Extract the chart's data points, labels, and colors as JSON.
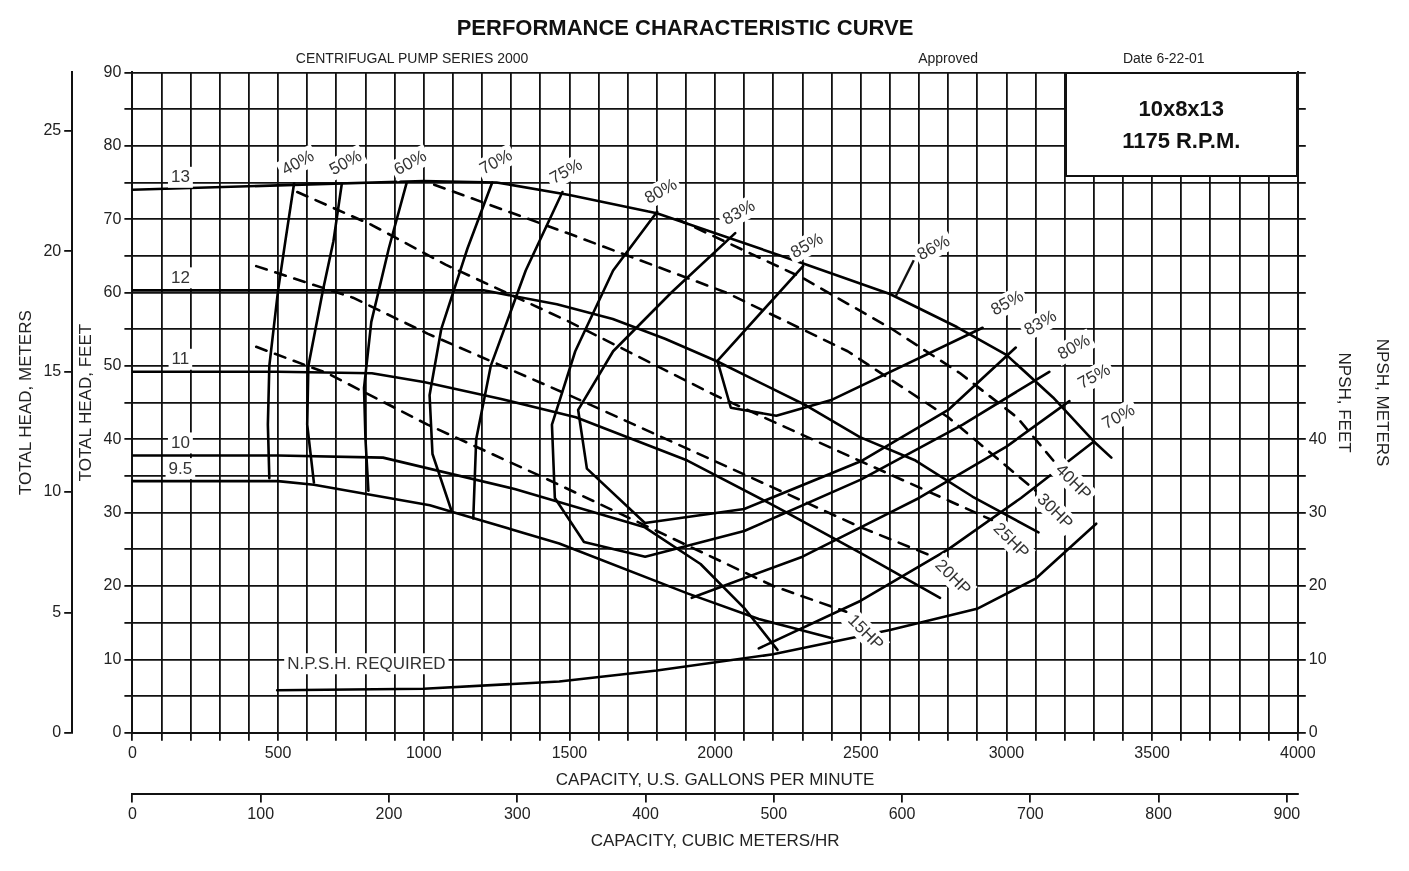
{
  "chart_data": {
    "type": "line",
    "title": "PERFORMANCE CHARACTERISTIC CURVE",
    "annotations": [
      "CENTRIFUGAL PUMP SERIES 2000",
      "Approved",
      "Date 6-22-01",
      "10x8x13",
      "1175 R.P.M.",
      "NPSH, METERS",
      {
        "text": "86%",
        "x": 2620,
        "y": 59.5
      }
    ],
    "xlabel": "CAPACITY, U.S. GALLONS PER MINUTE",
    "x2label": "CAPACITY, CUBIC METERS/HR",
    "ylabel": "TOTAL HEAD, FEET",
    "y2label": "TOTAL HEAD, METERS",
    "y3label": "NPSH, FEET",
    "xlim": [
      0,
      4000
    ],
    "xticks": [
      0,
      {
        "value": 100,
        "label": null
      },
      {
        "value": 200,
        "label": null
      },
      {
        "value": 300,
        "label": null
      },
      {
        "value": 400,
        "label": null
      },
      500,
      {
        "value": 600,
        "label": null
      },
      {
        "value": 700,
        "label": null
      },
      {
        "value": 800,
        "label": null
      },
      {
        "value": 900,
        "label": null
      },
      1000,
      {
        "value": 1100,
        "label": null
      },
      {
        "value": 1200,
        "label": null
      },
      {
        "value": 1300,
        "label": null
      },
      {
        "value": 1400,
        "label": null
      },
      1500,
      {
        "value": 1600,
        "label": null
      },
      {
        "value": 1700,
        "label": null
      },
      {
        "value": 1800,
        "label": null
      },
      {
        "value": 1900,
        "label": null
      },
      2000,
      {
        "value": 2100,
        "label": null
      },
      {
        "value": 2200,
        "label": null
      },
      {
        "value": 2300,
        "label": null
      },
      {
        "value": 2400,
        "label": null
      },
      2500,
      {
        "value": 2600,
        "label": null
      },
      {
        "value": 2700,
        "label": null
      },
      {
        "value": 2800,
        "label": null
      },
      {
        "value": 2900,
        "label": null
      },
      3000,
      {
        "value": 3100,
        "label": null
      },
      {
        "value": 3200,
        "label": null
      },
      {
        "value": 3300,
        "label": null
      },
      {
        "value": 3400,
        "label": null
      },
      3500,
      {
        "value": 3600,
        "label": null
      },
      {
        "value": 3700,
        "label": null
      },
      {
        "value": 3800,
        "label": null
      },
      {
        "value": 3900,
        "label": null
      },
      4000
    ],
    "x2lim": [
      0,
      908.5
    ],
    "x2ticks": [
      0,
      100,
      200,
      300,
      400,
      500,
      600,
      700,
      800,
      900
    ],
    "ylim": [
      0,
      90
    ],
    "yticks": [
      0,
      {
        "value": 5,
        "label": null
      },
      10,
      {
        "value": 15,
        "label": null
      },
      20,
      {
        "value": 25,
        "label": null
      },
      30,
      {
        "value": 35,
        "label": null
      },
      40,
      {
        "value": 45,
        "label": null
      },
      50,
      {
        "value": 55,
        "label": null
      },
      60,
      {
        "value": 65,
        "label": null
      },
      70,
      {
        "value": 75,
        "label": null
      },
      80,
      {
        "value": 85,
        "label": null
      },
      90
    ],
    "y2lim": [
      0,
      27.43
    ],
    "y2ticks": [
      0,
      5,
      10,
      15,
      20,
      25
    ],
    "y3lim": [
      0,
      90
    ],
    "y3ticks": [
      0,
      {
        "value": 5,
        "label": null
      },
      10,
      {
        "value": 15,
        "label": null
      },
      20,
      {
        "value": 25,
        "label": null
      },
      30,
      {
        "value": 35,
        "label": null
      },
      40,
      {
        "value": 45,
        "label": null
      },
      {
        "value": 50,
        "label": null
      },
      {
        "value": 55,
        "label": null
      },
      {
        "value": 60,
        "label": null
      },
      {
        "value": 65,
        "label": null
      },
      {
        "value": 70,
        "label": null
      },
      {
        "value": 75,
        "label": null
      },
      {
        "value": 80,
        "label": null
      },
      {
        "value": 85,
        "label": null
      },
      {
        "value": 90,
        "label": null
      }
    ],
    "grid": true,
    "series": [
      {
        "name": "13",
        "color": "#000000",
        "x": [
          0,
          500,
          1000,
          1250,
          1500,
          1800,
          2300,
          2600,
          2830,
          3000,
          3160,
          3300,
          3360
        ],
        "values": [
          74,
          74.6,
          75.2,
          75,
          73.3,
          70.8,
          64,
          59.8,
          55.3,
          51.5,
          45.7,
          39.7,
          37.5
        ]
      },
      {
        "name": "12",
        "color": "#000000",
        "x": [
          0,
          500,
          1000,
          1205,
          1457,
          1649,
          1828,
          2008,
          2313,
          2497,
          2688,
          2883,
          3110
        ],
        "values": [
          60.3,
          60.3,
          60.3,
          60.3,
          58.4,
          56.4,
          53.7,
          50.6,
          44.6,
          40.3,
          37.1,
          32.2,
          27.3
        ]
      },
      {
        "name": "11",
        "color": "#000000",
        "x": [
          0,
          500,
          822,
          1000,
          1266,
          1522,
          1905,
          2200,
          2500,
          2772
        ],
        "values": [
          49.2,
          49.2,
          49,
          47.8,
          45.5,
          43,
          37.1,
          31,
          24.5,
          18.4
        ]
      },
      {
        "name": "10",
        "color": "#000000",
        "x": [
          0,
          500,
          860,
          1315,
          1759,
          1950,
          2100,
          2214
        ],
        "values": [
          37.8,
          37.8,
          37.5,
          33.2,
          28,
          23,
          17,
          11.3
        ]
      },
      {
        "name": "9.5",
        "color": "#000000",
        "x": [
          0,
          500,
          623,
          1021,
          1465,
          1905,
          2150,
          2402
        ],
        "values": [
          34.3,
          34.3,
          33.8,
          31,
          25.8,
          19,
          15.5,
          12.9
        ]
      },
      {
        "name": "40%",
        "color": "#000000",
        "x": [
          555,
          525,
          500,
          470,
          465,
          470
        ],
        "values": [
          74.9,
          67,
          60.3,
          50,
          42,
          34.7
        ]
      },
      {
        "name": "50%",
        "color": "#000000",
        "x": [
          719,
          690,
          654,
          604,
          600,
          623
        ],
        "values": [
          74.9,
          67,
          60.3,
          50,
          42,
          34.1
        ]
      },
      {
        "name": "60%",
        "color": "#000000",
        "x": [
          941,
          880,
          820,
          795,
          800,
          810
        ],
        "values": [
          74.9,
          66,
          56,
          47,
          40,
          33
        ]
      },
      {
        "name": "70%",
        "color": "#000000",
        "x": [
          1235,
          1150,
          1060,
          1020,
          1030,
          1094,
          1600,
          2150,
          2500,
          2800,
          3050,
          3300
        ],
        "values": [
          75,
          66,
          55,
          46,
          38,
          30.4,
          null,
          11.5,
          18,
          25,
          32,
          39.7
        ]
      },
      {
        "name": "75%",
        "color": "#000000",
        "x": [
          1476,
          1350,
          1230,
          1180,
          1170,
          1600,
          1920,
          2300,
          2700,
          3000,
          3216
        ],
        "values": [
          73.7,
          63,
          50,
          40,
          29.2,
          null,
          18.4,
          24,
          32,
          39,
          45.2
        ]
      },
      {
        "name": "80%",
        "color": "#000000",
        "x": [
          1801,
          1650,
          1520,
          1440,
          1450,
          1550,
          1760,
          2100,
          2500,
          2850,
          3147
        ],
        "values": [
          71,
          63,
          52,
          42,
          32,
          26,
          24,
          27.5,
          34.5,
          42,
          49.2
        ]
      },
      {
        "name": "83%",
        "color": "#000000",
        "x": [
          2069,
          1850,
          1650,
          1530,
          1560,
          1759,
          2100,
          2500,
          2800,
          3032
        ],
        "values": [
          68.1,
          60,
          52,
          44,
          36,
          28.6,
          30.5,
          37,
          44,
          52.5
        ]
      },
      {
        "name": "85%",
        "color": "#000000",
        "x": [
          2302,
          2008,
          2054,
          2210,
          2402,
          2918
        ],
        "values": [
          63.6,
          50.7,
          44.3,
          43.2,
          45.4,
          55.2
        ]
      },
      {
        "name": "15HP",
        "color": "#000000",
        "line_style": "dashed",
        "x": [
          425,
          669,
          1013,
          1400,
          1800,
          2200,
          2450
        ],
        "values": [
          52.6,
          49,
          42,
          35,
          27.5,
          20,
          16.5
        ]
      },
      {
        "name": "20HP",
        "color": "#000000",
        "line_style": "dashed",
        "x": [
          425,
          757,
          1013,
          1500,
          2000,
          2500,
          2750
        ],
        "values": [
          63.6,
          59.3,
          54.4,
          46,
          37,
          28,
          24
        ]
      },
      {
        "name": "25HP",
        "color": "#000000",
        "line_style": "dashed",
        "x": [
          566,
          822,
          1075,
          1500,
          2000,
          2500,
          2950
        ],
        "values": [
          73.7,
          69.2,
          63.8,
          56,
          46,
          37,
          29
        ]
      },
      {
        "name": "30HP",
        "color": "#000000",
        "line_style": "dashed",
        "x": [
          1036,
          1500,
          2038,
          2455,
          2800,
          3100
        ],
        "values": [
          74.7,
          68,
          60,
          52,
          43,
          33
        ]
      },
      {
        "name": "40HP",
        "color": "#000000",
        "line_style": "dashed",
        "x": [
          1870,
          2300,
          2608,
          2841,
          3036,
          3163
        ],
        "values": [
          70,
          62,
          55,
          49,
          43,
          37
        ]
      },
      {
        "name": "N.P.S.H. REQUIRED",
        "color": "#000000",
        "axis": "y3",
        "x": [
          497,
          1000,
          1465,
          1800,
          2199,
          2600,
          2899,
          3100,
          3308
        ],
        "values": [
          5.8,
          6,
          7,
          8.5,
          10.7,
          14,
          16.9,
          21,
          28.5
        ]
      }
    ]
  }
}
